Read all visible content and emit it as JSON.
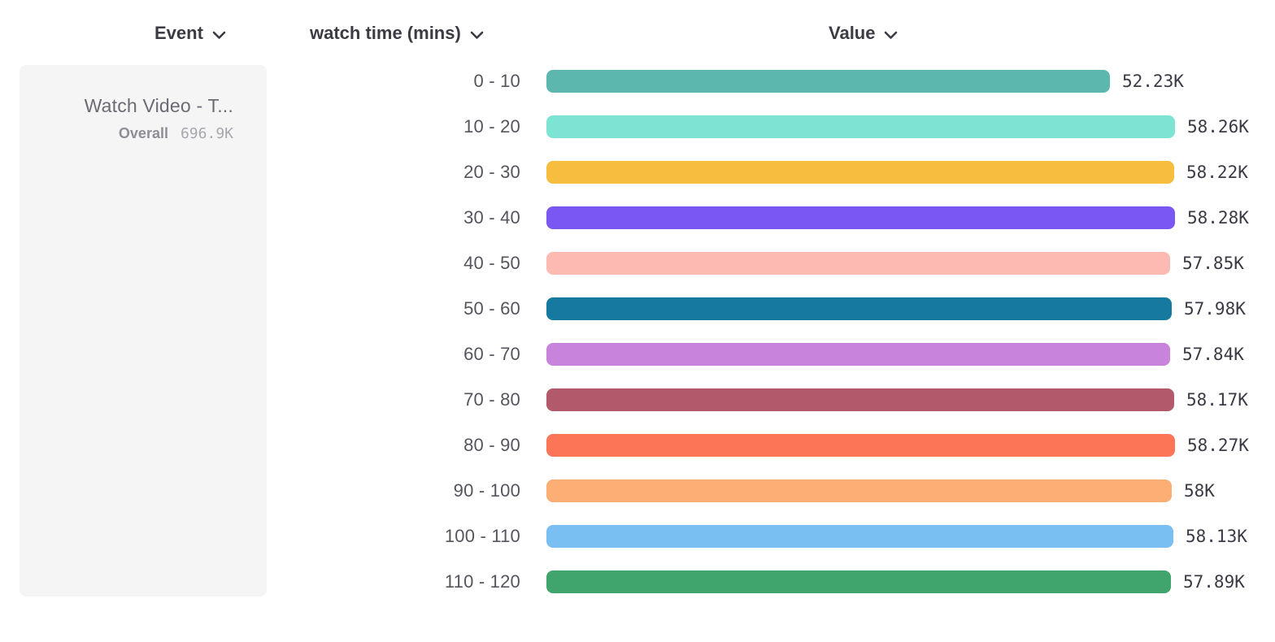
{
  "headers": {
    "event": "Event",
    "breakdown": "watch time (mins)",
    "value": "Value"
  },
  "event_card": {
    "title": "Watch Video - T...",
    "overall_label": "Overall",
    "overall_value": "696.9K"
  },
  "chart_data": {
    "type": "bar",
    "orientation": "horizontal",
    "title": "",
    "xlabel": "Value",
    "ylabel": "watch time (mins)",
    "xlim": [
      0,
      58280
    ],
    "grid": false,
    "categories": [
      "0 - 10",
      "10 - 20",
      "20 - 30",
      "30 - 40",
      "40 - 50",
      "50 - 60",
      "60 - 70",
      "70 - 80",
      "80 - 90",
      "90 - 100",
      "100 - 110",
      "110 - 120"
    ],
    "values": [
      52230,
      58260,
      58220,
      58280,
      57850,
      57980,
      57840,
      58170,
      58270,
      58000,
      58130,
      57890
    ],
    "value_labels": [
      "52.23K",
      "58.26K",
      "58.22K",
      "58.28K",
      "57.85K",
      "57.98K",
      "57.84K",
      "58.17K",
      "58.27K",
      "58K",
      "58.13K",
      "57.89K"
    ],
    "bar_colors": [
      "#5cb8ae",
      "#7de4d3",
      "#f7bd3f",
      "#7957f2",
      "#fdbab2",
      "#16799f",
      "#c884dc",
      "#b25a6b",
      "#fd7557",
      "#fcae74",
      "#79bff2",
      "#3fa56c"
    ]
  },
  "colors": {
    "header_text": "#3b3b44",
    "category_text": "#55555e",
    "value_text": "#3a3a44",
    "card_bg": "#f5f5f6"
  }
}
